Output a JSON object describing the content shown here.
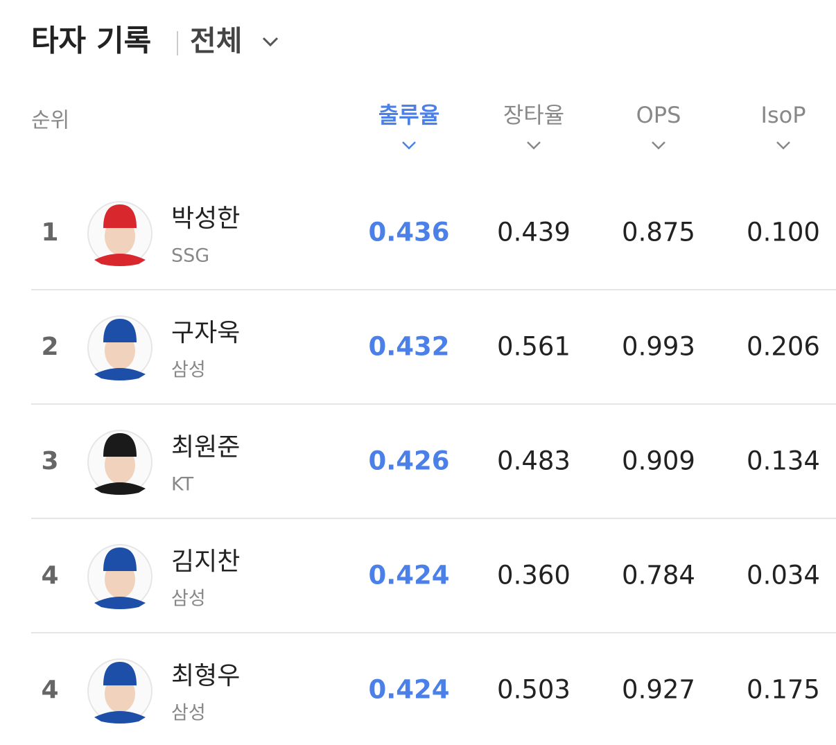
{
  "header": {
    "title": "타자 기록",
    "filter": "전체"
  },
  "table": {
    "columns": [
      "순위",
      "출루율",
      "장타율",
      "OPS",
      "IsoP"
    ],
    "rows": [
      {
        "rank": 1,
        "name": "박성한",
        "team": "SSG",
        "stats": [
          "0.436",
          "0.439",
          "0.875",
          "0.100"
        ]
      },
      {
        "rank": 2,
        "name": "구자욱",
        "team": "삼성",
        "stats": [
          "0.432",
          "0.561",
          "0.993",
          "0.206"
        ]
      },
      {
        "rank": 3,
        "name": "최원준",
        "team": "KT",
        "stats": [
          "0.426",
          "0.483",
          "0.909",
          "0.134"
        ]
      },
      {
        "rank": 4,
        "name": "김지찬",
        "team": "삼성",
        "stats": [
          "0.424",
          "0.360",
          "0.784",
          "0.034"
        ]
      },
      {
        "rank": 4,
        "name": "최형우",
        "team": "삼성",
        "stats": [
          "0.424",
          "0.503",
          "0.927",
          "0.175"
        ]
      }
    ]
  }
}
